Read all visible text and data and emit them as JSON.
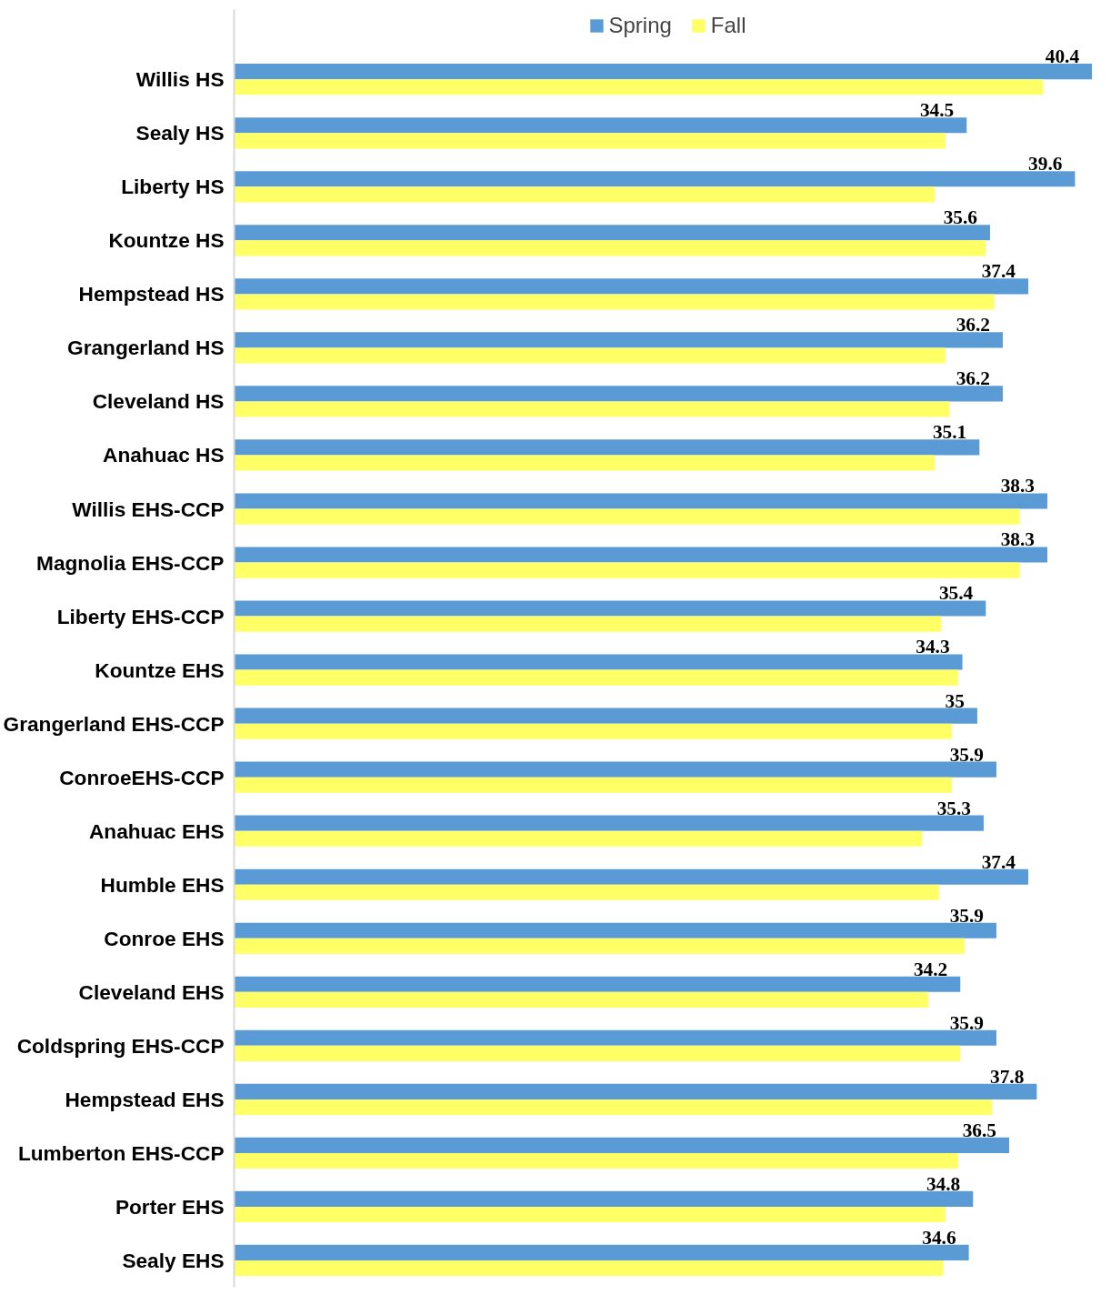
{
  "chart_data": {
    "type": "bar",
    "orientation": "horizontal",
    "categories": [
      "Willis HS",
      "Sealy HS",
      "Liberty HS",
      "Kountze HS",
      "Hempstead HS",
      "Grangerland HS",
      "Cleveland HS",
      "Anahuac HS",
      "Willis EHS-CCP",
      "Magnolia EHS-CCP",
      "Liberty EHS-CCP",
      "Kountze EHS",
      "Grangerland EHS-CCP",
      "ConroeEHS-CCP",
      "Anahuac EHS",
      "Humble EHS",
      "Conroe EHS",
      "Cleveland EHS",
      "Coldspring EHS-CCP",
      "Hempstead EHS",
      "Lumberton EHS-CCP",
      "Porter EHS",
      "Sealy EHS"
    ],
    "series": [
      {
        "name": "Spring",
        "color": "#5b9bd5",
        "values": [
          40.4,
          34.5,
          39.6,
          35.6,
          37.4,
          36.2,
          36.2,
          35.1,
          38.3,
          38.3,
          35.4,
          34.3,
          35,
          35.9,
          35.3,
          37.4,
          35.9,
          34.2,
          35.9,
          37.8,
          36.5,
          34.8,
          34.6
        ],
        "value_labels": [
          "40.4",
          "34.5",
          "39.6",
          "35.6",
          "37.4",
          "36.2",
          "36.2",
          "35.1",
          "38.3",
          "38.3",
          "35.4",
          "34.3",
          "35",
          "35.9",
          "35.3",
          "37.4",
          "35.9",
          "34.2",
          "35.9",
          "37.8",
          "36.5",
          "34.8",
          "34.6"
        ]
      },
      {
        "name": "Fall",
        "color": "#ffff66",
        "values": [
          38.1,
          33.5,
          33.0,
          35.4,
          35.8,
          33.5,
          33.7,
          33.0,
          37.0,
          37.0,
          33.3,
          34.1,
          33.8,
          33.8,
          32.4,
          33.2,
          34.4,
          32.7,
          34.2,
          35.7,
          34.1,
          33.5,
          33.4
        ]
      }
    ],
    "legend": "top",
    "grid": false
  }
}
